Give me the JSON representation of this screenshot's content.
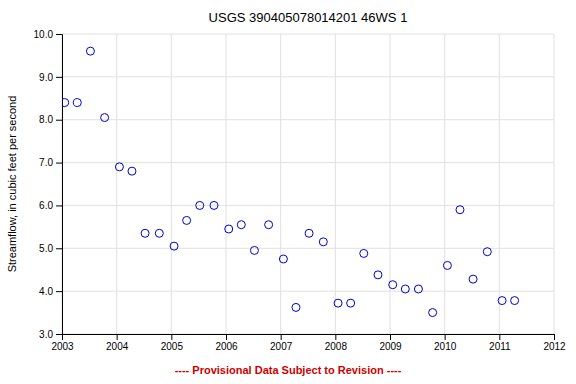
{
  "chart_data": {
    "type": "scatter",
    "title": "USGS 390405078014201 46WS  1",
    "ylabel": "Streamflow, in cubic feet per second",
    "x": [
      2003.05,
      2003.28,
      2003.52,
      2003.78,
      2004.05,
      2004.28,
      2004.52,
      2004.78,
      2005.05,
      2005.28,
      2005.52,
      2005.78,
      2006.05,
      2006.28,
      2006.52,
      2006.78,
      2007.05,
      2007.28,
      2007.52,
      2007.78,
      2008.05,
      2008.28,
      2008.52,
      2008.78,
      2009.05,
      2009.28,
      2009.52,
      2009.78,
      2010.05,
      2010.28,
      2010.52,
      2010.78,
      2011.05,
      2011.28
    ],
    "values": [
      8.4,
      8.4,
      9.6,
      8.05,
      6.9,
      6.8,
      5.35,
      5.35,
      5.05,
      5.65,
      6.0,
      6.0,
      5.45,
      5.55,
      4.95,
      5.55,
      4.75,
      3.62,
      5.35,
      5.15,
      3.72,
      3.72,
      4.88,
      4.38,
      4.15,
      4.05,
      4.05,
      3.5,
      4.6,
      5.9,
      4.28,
      4.92,
      3.78,
      3.78
    ],
    "color": "#0000CC",
    "marker": "circle-open",
    "xlim": [
      2003,
      2012
    ],
    "ylim": [
      3.0,
      10.0
    ],
    "xticks": [
      2003,
      2004,
      2005,
      2006,
      2007,
      2008,
      2009,
      2010,
      2011,
      2012
    ],
    "yticks": [
      {
        "value": 3.0,
        "label": "3.0"
      },
      {
        "value": 4.0,
        "label": "4.0"
      },
      {
        "value": 5.0,
        "label": "5.0"
      },
      {
        "value": 6.0,
        "label": "6.0"
      },
      {
        "value": 7.0,
        "label": "7.0"
      },
      {
        "value": 8.0,
        "label": "8.0"
      },
      {
        "value": 9.0,
        "label": "9.0"
      },
      {
        "value": 10.0,
        "label": "10.0"
      }
    ],
    "grid": true,
    "annotations": [
      {
        "text": "---- Provisional Data Subject to Revision ----",
        "color": "#cc0000"
      }
    ]
  }
}
